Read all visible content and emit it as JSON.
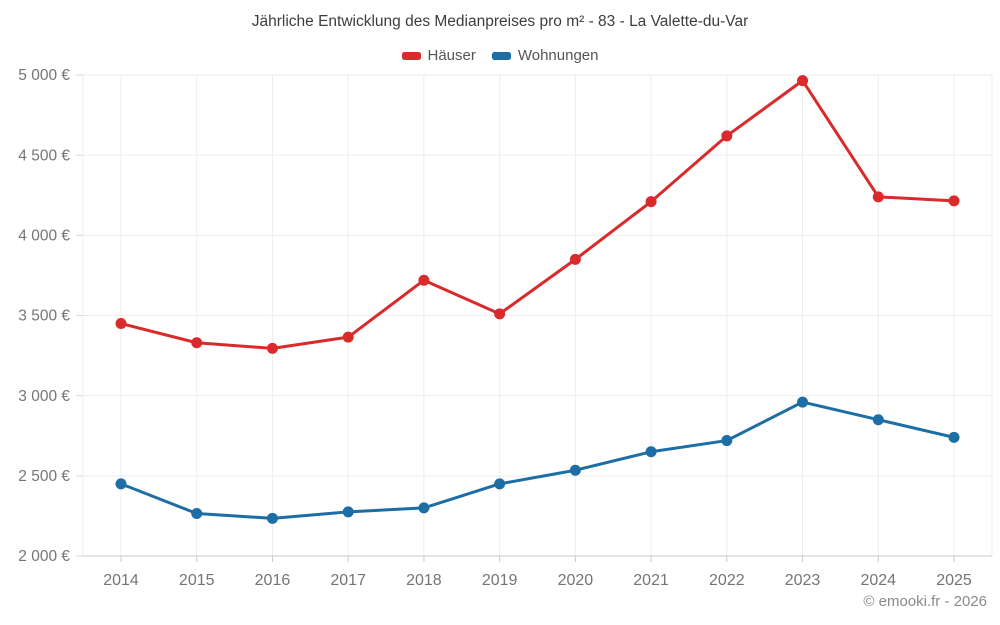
{
  "page": {
    "footer": "© emooki.fr - 2026"
  },
  "chart_data": {
    "type": "line",
    "title": "Jährliche Entwicklung des Medianpreises pro m² - 83 - La Valette-du-Var",
    "categories": [
      "2014",
      "2015",
      "2016",
      "2017",
      "2018",
      "2019",
      "2020",
      "2021",
      "2022",
      "2023",
      "2024",
      "2025"
    ],
    "series": [
      {
        "name": "Häuser",
        "color": "#d92b2b",
        "values": [
          3450,
          3330,
          3295,
          3365,
          3720,
          3510,
          3850,
          4210,
          4620,
          4965,
          4240,
          4215
        ]
      },
      {
        "name": "Wohnungen",
        "color": "#1c6ea4",
        "values": [
          2450,
          2265,
          2235,
          2275,
          2300,
          2450,
          2535,
          2650,
          2720,
          2960,
          2850,
          2740
        ]
      }
    ],
    "xlabel": "",
    "ylabel": "",
    "ylim": [
      2000,
      5000
    ],
    "y_tick_step": 500,
    "y_ticks": [
      {
        "value": 2000,
        "label": "2 000 €"
      },
      {
        "value": 2500,
        "label": "2 500 €"
      },
      {
        "value": 3000,
        "label": "3 000 €"
      },
      {
        "value": 3500,
        "label": "3 500 €"
      },
      {
        "value": 4000,
        "label": "4 000 €"
      },
      {
        "value": 4500,
        "label": "4 500 €"
      },
      {
        "value": 5000,
        "label": "5 000 €"
      }
    ],
    "grid": true,
    "legend_position": "top",
    "colors": {
      "grid": "#ededed",
      "axis": "#c9c9c9",
      "tick": "#d6d6d6",
      "tick_label": "#757575"
    }
  }
}
